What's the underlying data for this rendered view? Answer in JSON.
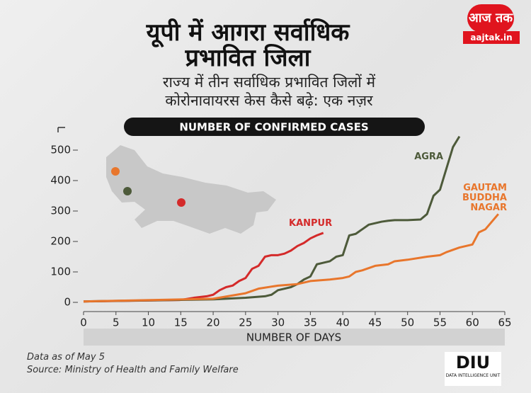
{
  "header": {
    "title_line_1": "यूपी में आगरा सर्वाधिक",
    "title_line_2": "प्रभावित जिला",
    "subtitle_line_1": "राज्य में तीन सर्वाधिक प्रभावित जिलों में",
    "subtitle_line_2": "कोरोनावायरस केस कैसे बढ़े: एक नज़र"
  },
  "logo": {
    "brand": "आज तक",
    "site": "aajtak.in"
  },
  "footer": {
    "note": "Data as of May 5",
    "source": "Source: Ministry of Health and Family Welfare",
    "diu": "DIU",
    "diu_full": "DATA INTELLIGENCE UNIT"
  },
  "chart_data": {
    "type": "line",
    "y_label": "NUMBER OF CONFIRMED CASES",
    "x_label": "NUMBER OF DAYS",
    "xlim": [
      0,
      65
    ],
    "xticks": [
      0,
      5,
      10,
      15,
      20,
      25,
      30,
      35,
      40,
      45,
      50,
      55,
      60,
      65
    ],
    "ylim": [
      0,
      550
    ],
    "yticks": [
      0,
      100,
      200,
      300,
      400,
      500
    ],
    "series": [
      {
        "name": "KANPUR",
        "color": "#d42a2a",
        "x": [
          0,
          15,
          17,
          19,
          20,
          21,
          22,
          23,
          24,
          25,
          26,
          27,
          28,
          29,
          30,
          31,
          32,
          33,
          34,
          35,
          36,
          37
        ],
        "values": [
          3,
          8,
          15,
          20,
          25,
          40,
          50,
          55,
          70,
          80,
          110,
          120,
          150,
          155,
          155,
          160,
          170,
          185,
          195,
          210,
          220,
          228
        ]
      },
      {
        "name": "AGRA",
        "color": "#4d5a3a",
        "x": [
          0,
          20,
          25,
          28,
          29,
          30,
          31,
          32,
          33,
          34,
          35,
          36,
          37,
          38,
          39,
          40,
          41,
          42,
          43,
          44,
          45,
          46,
          47,
          48,
          50,
          52,
          53,
          54,
          55,
          56,
          57,
          58
        ],
        "values": [
          3,
          10,
          15,
          20,
          25,
          40,
          45,
          50,
          60,
          75,
          85,
          125,
          130,
          135,
          150,
          155,
          220,
          225,
          240,
          255,
          260,
          265,
          268,
          270,
          270,
          272,
          290,
          350,
          370,
          440,
          510,
          545
        ]
      },
      {
        "name": "GAUTAM BUDDHA NAGAR",
        "color": "#e8762c",
        "x": [
          0,
          20,
          25,
          27,
          30,
          33,
          35,
          38,
          40,
          41,
          42,
          43,
          45,
          47,
          48,
          50,
          53,
          55,
          56,
          58,
          60,
          61,
          62,
          63,
          64
        ],
        "values": [
          3,
          12,
          30,
          45,
          55,
          60,
          70,
          75,
          80,
          85,
          100,
          105,
          120,
          125,
          135,
          140,
          150,
          155,
          165,
          180,
          190,
          230,
          240,
          265,
          290
        ]
      }
    ]
  }
}
